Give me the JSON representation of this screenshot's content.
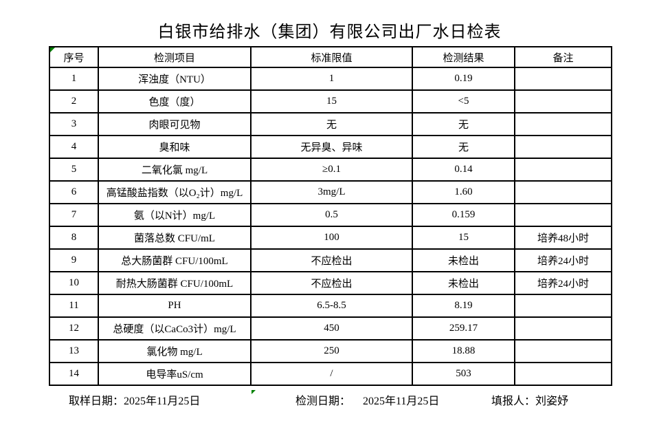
{
  "title": "白银市给排水（集团）有限公司出厂水日检表",
  "table": {
    "headers": [
      "序号",
      "检测项目",
      "标准限值",
      "检测结果",
      "备注"
    ],
    "rows": [
      [
        "1",
        "浑浊度（NTU）",
        "1",
        "0.19",
        ""
      ],
      [
        "2",
        "色度（度）",
        "15",
        "<5",
        ""
      ],
      [
        "3",
        "肉眼可见物",
        "无",
        "无",
        ""
      ],
      [
        "4",
        "臭和味",
        "无异臭、异味",
        "无",
        ""
      ],
      [
        "5",
        "二氧化氯 mg/L",
        "≥0.1",
        "0.14",
        ""
      ],
      [
        "6",
        "高锰酸盐指数（以O₂计）mg/L",
        "3mg/L",
        "1.60",
        ""
      ],
      [
        "7",
        "氨（以N计）mg/L",
        "0.5",
        "0.159",
        ""
      ],
      [
        "8",
        "菌落总数 CFU/mL",
        "100",
        "15",
        "培养48小时"
      ],
      [
        "9",
        "总大肠菌群 CFU/100mL",
        "不应检出",
        "未检出",
        "培养24小时"
      ],
      [
        "10",
        "耐热大肠菌群 CFU/100mL",
        "不应检出",
        "未检出",
        "培养24小时"
      ],
      [
        "11",
        "PH",
        "6.5-8.5",
        "8.19",
        ""
      ],
      [
        "12",
        "总硬度（以CaCo3计）mg/L",
        "450",
        "259.17",
        ""
      ],
      [
        "13",
        "氯化物 mg/L",
        "250",
        "18.88",
        ""
      ],
      [
        "14",
        "电导率uS/cm",
        "/",
        "503",
        ""
      ]
    ]
  },
  "footer": {
    "sampling_label": "取样日期：",
    "sampling_date": "2025年11月25日",
    "testing_label": "检测日期：",
    "testing_date": "2025年11月25日",
    "reporter_label": "填报人：",
    "reporter_name": "刘姿妤"
  },
  "colors": {
    "marker_green": "#008000",
    "border": "#000000",
    "background": "#ffffff",
    "text": "#000000"
  }
}
